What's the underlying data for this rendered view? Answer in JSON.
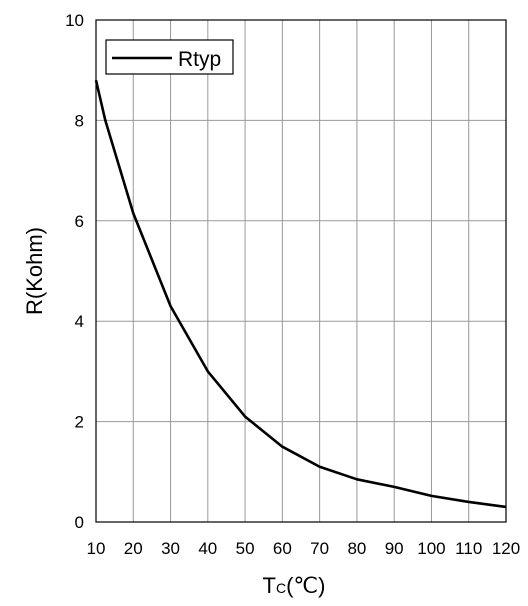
{
  "chart_data": {
    "type": "line",
    "xlabel_main": "T",
    "xlabel_sub": "C",
    "xlabel_unit": "(℃)",
    "ylabel": "R(Kohm)",
    "xlim": [
      10,
      120
    ],
    "ylim": [
      0,
      10
    ],
    "xticks": [
      10,
      20,
      30,
      40,
      50,
      60,
      70,
      80,
      90,
      100,
      110,
      120
    ],
    "yticks": [
      0,
      2,
      4,
      6,
      8,
      10
    ],
    "grid": true,
    "legend_position": "top-left",
    "series": [
      {
        "name": "Rtyp",
        "color": "#000000",
        "x": [
          10,
          12.5,
          20,
          30,
          40,
          50,
          60,
          70,
          80,
          90,
          100,
          110,
          120
        ],
        "y": [
          8.8,
          8.0,
          6.15,
          4.3,
          3.0,
          2.1,
          1.5,
          1.1,
          0.85,
          0.7,
          0.52,
          0.4,
          0.3
        ]
      }
    ]
  }
}
